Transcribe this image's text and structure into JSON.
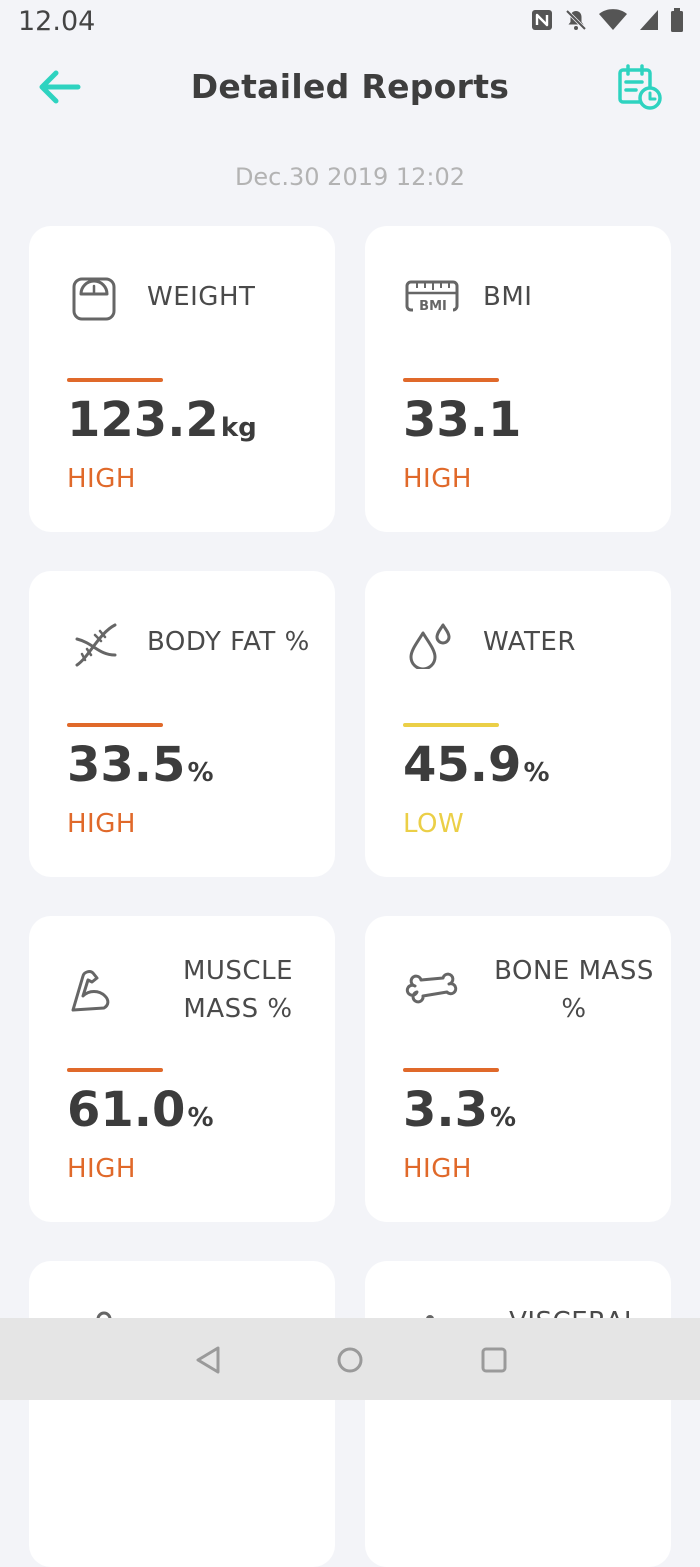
{
  "status_bar": {
    "time": "12.04",
    "icons": [
      "nfc-icon",
      "silent-icon",
      "wifi-icon",
      "signal-icon",
      "battery-icon"
    ]
  },
  "header": {
    "title": "Detailed Reports",
    "back_icon": "arrow-left-icon",
    "history_icon": "calendar-clock-icon"
  },
  "report_date": "Dec.30 2019 12:02",
  "colors": {
    "accent": "#2ed3c0",
    "high": "#e0692a",
    "low": "#ebcf47"
  },
  "cards": [
    {
      "label": "WEIGHT",
      "value": "123.2",
      "unit": "kg",
      "status": "HIGH",
      "icon": "scale-icon"
    },
    {
      "label": "BMI",
      "value": "33.1",
      "unit": "",
      "status": "HIGH",
      "icon": "bmi-ruler-icon",
      "icon_text": "BMI"
    },
    {
      "label": "BODY FAT %",
      "value": "33.5",
      "unit": "%",
      "status": "HIGH",
      "icon": "dna-icon"
    },
    {
      "label": "WATER",
      "value": "45.9",
      "unit": "%",
      "status": "LOW",
      "icon": "water-drops-icon"
    },
    {
      "label": "MUSCLE MASS %",
      "value": "61.0",
      "unit": "%",
      "status": "HIGH",
      "icon": "muscle-arm-icon"
    },
    {
      "label": "BONE MASS %",
      "value": "3.3",
      "unit": "%",
      "status": "HIGH",
      "icon": "bone-icon"
    }
  ],
  "partial_cards": [
    {
      "label": "VISCERAL"
    }
  ],
  "nav": {
    "back": "nav-back-icon",
    "home": "nav-home-icon",
    "recents": "nav-recents-icon"
  }
}
